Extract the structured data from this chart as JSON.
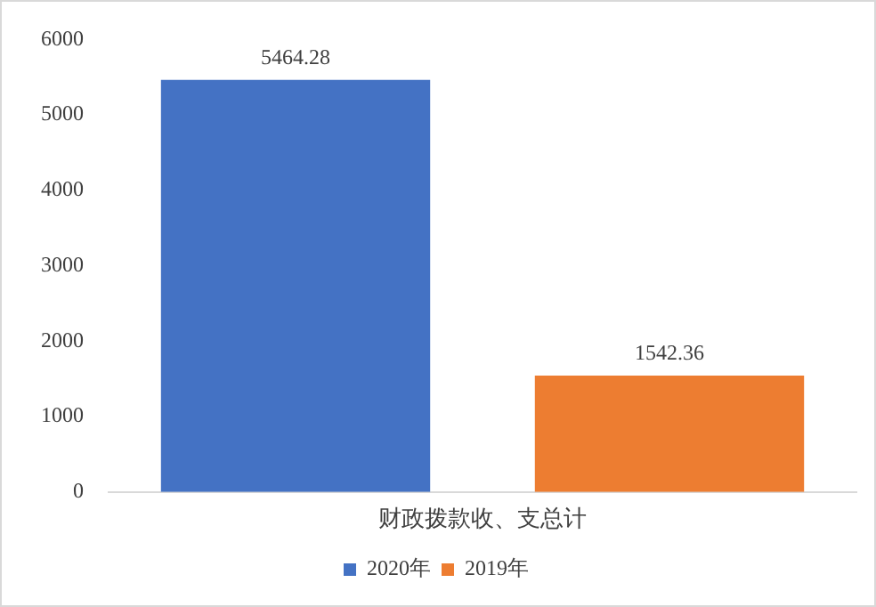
{
  "chart_data": {
    "type": "bar",
    "categories": [
      "财政拨款收、支总计"
    ],
    "series": [
      {
        "name": "2020年",
        "color": "#4472c4",
        "values": [
          5464.28
        ]
      },
      {
        "name": "2019年",
        "color": "#ed7d31",
        "values": [
          1542.36
        ]
      }
    ],
    "ylim": [
      0,
      6000
    ],
    "yticks": [
      0,
      1000,
      2000,
      3000,
      4000,
      5000,
      6000
    ],
    "grid": false,
    "legend": "bottom",
    "data_labels": true
  }
}
